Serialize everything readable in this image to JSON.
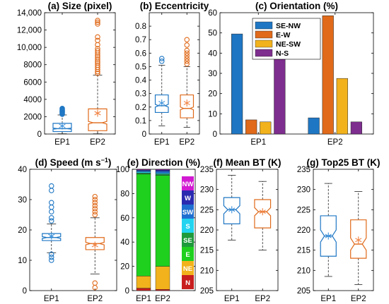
{
  "colors": {
    "ep1": "#1f77c4",
    "ep2": "#e06a1a",
    "axis": "#000000",
    "star_ep1": "#3a8fd9",
    "star_ep2": "#f08040"
  },
  "chart_data": [
    {
      "id": "a",
      "type": "box",
      "title": "(a) Size (pixel)",
      "categories": [
        "EP1",
        "EP2"
      ],
      "ylim": [
        0,
        14000
      ],
      "yticks": [
        0,
        2000,
        4000,
        6000,
        8000,
        10000,
        12000,
        14000
      ],
      "ytick_labels": [
        "0",
        "2000",
        "4000",
        "6000",
        "8000",
        "10,000",
        "12,000",
        "14,000"
      ],
      "boxes": [
        {
          "q1": 280,
          "median": 620,
          "q3": 1230,
          "notch": [
            560,
            680
          ],
          "whisker_low": 30,
          "whisker_high": 2200,
          "mean": 930,
          "outliers": [
            2280,
            2350,
            2420,
            2500,
            2580,
            2650,
            2720,
            2800,
            2880,
            2950
          ]
        },
        {
          "q1": 380,
          "median": 1300,
          "q3": 2900,
          "notch": [
            1150,
            1450
          ],
          "whisker_low": 30,
          "whisker_high": 6800,
          "mean": 2400,
          "outliers": [
            7000,
            7200,
            7450,
            7700,
            7950,
            8200,
            8400,
            8650,
            8900,
            9100,
            9350,
            9600,
            9850,
            10300,
            10800,
            11200,
            12700,
            12900,
            13100
          ]
        }
      ]
    },
    {
      "id": "b",
      "type": "box",
      "title": "(b) Eccentricity",
      "categories": [
        "EP1",
        "EP2"
      ],
      "ylim": [
        0,
        0.9
      ],
      "yticks": [
        0,
        0.1,
        0.2,
        0.3,
        0.4,
        0.5,
        0.6,
        0.7,
        0.8
      ],
      "ytick_labels": [
        "0",
        "0.1",
        "0.2",
        "0.3",
        "0.4",
        "0.5",
        "0.6",
        "0.7",
        "0.8"
      ],
      "boxes": [
        {
          "q1": 0.16,
          "median": 0.21,
          "q3": 0.29,
          "notch": [
            0.2,
            0.22
          ],
          "whisker_low": 0.06,
          "whisker_high": 0.51,
          "mean": 0.23,
          "outliers": [
            0.54,
            0.56
          ]
        },
        {
          "q1": 0.12,
          "median": 0.19,
          "q3": 0.29,
          "notch": [
            0.18,
            0.2
          ],
          "whisker_low": 0.05,
          "whisker_high": 0.5,
          "mean": 0.23,
          "outliers": [
            0.52,
            0.54,
            0.56,
            0.58,
            0.6,
            0.62,
            0.66,
            0.7
          ]
        }
      ]
    },
    {
      "id": "c",
      "type": "bar",
      "title": "(c) Orientation (%)",
      "categories": [
        "EP1",
        "EP2"
      ],
      "ylim": [
        0,
        60
      ],
      "yticks": [
        0,
        10,
        20,
        30,
        40,
        50,
        60
      ],
      "ytick_labels": [
        "0",
        "10",
        "20",
        "30",
        "40",
        "50",
        "60"
      ],
      "legend_position": "top-left",
      "series": [
        {
          "name": "SE-NW",
          "color": "#1f77c4",
          "values": [
            49.5,
            8
          ]
        },
        {
          "name": "E-W",
          "color": "#e06a1a",
          "values": [
            7,
            58.5
          ]
        },
        {
          "name": "NE-SW",
          "color": "#f2b21c",
          "values": [
            6,
            27.5
          ]
        },
        {
          "name": "N-S",
          "color": "#7e2e8e",
          "values": [
            37,
            6
          ]
        }
      ]
    },
    {
      "id": "d",
      "type": "box",
      "title": "(d) Speed (m s",
      "title_sup": "−1",
      "title_end": ")",
      "categories": [
        "EP1",
        "EP2"
      ],
      "ylim": [
        0,
        40
      ],
      "yticks": [
        0,
        10,
        20,
        30,
        40
      ],
      "ytick_labels": [
        "0",
        "10",
        "20",
        "30",
        "40"
      ],
      "boxes": [
        {
          "q1": 16.5,
          "median": 17.5,
          "q3": 18.8,
          "notch": [
            17.2,
            17.8
          ],
          "whisker_low": 12.5,
          "whisker_high": 22,
          "mean": 18,
          "outliers": [
            10,
            11,
            12,
            23,
            24,
            26,
            27.5,
            29,
            33,
            34.5
          ]
        },
        {
          "q1": 13.5,
          "median": 15.5,
          "q3": 17.5,
          "notch": [
            15.1,
            15.9
          ],
          "whisker_low": 5.5,
          "whisker_high": 24,
          "mean": 15,
          "outliers": [
            1,
            2.5,
            25,
            26,
            27,
            28,
            29,
            30,
            31
          ]
        }
      ]
    },
    {
      "id": "e",
      "type": "stacked_bar",
      "title": "(e) Direction (%)",
      "categories": [
        "EP1",
        "EP2"
      ],
      "ylim": [
        0,
        100
      ],
      "yticks": [
        0,
        20,
        40,
        60,
        80,
        100
      ],
      "ytick_labels": [
        "0",
        "20",
        "40",
        "60",
        "80",
        "100"
      ],
      "series": [
        {
          "name": "N",
          "color": "#c81e1e",
          "values": [
            2,
            1
          ]
        },
        {
          "name": "NE",
          "color": "#f2b21c",
          "values": [
            10,
            19
          ]
        },
        {
          "name": "E",
          "color": "#1fd01f",
          "values": [
            84,
            75
          ]
        },
        {
          "name": "SE",
          "color": "#1e9a3c",
          "values": [
            1,
            1
          ]
        },
        {
          "name": "S",
          "color": "#22d4f0",
          "values": [
            1,
            1
          ]
        },
        {
          "name": "SW",
          "color": "#1f6fd1",
          "values": [
            1,
            1.5
          ]
        },
        {
          "name": "W",
          "color": "#2a2ab0",
          "values": [
            0.5,
            1
          ]
        },
        {
          "name": "NW",
          "color": "#d21ad2",
          "values": [
            0.5,
            0.5
          ]
        }
      ]
    },
    {
      "id": "f",
      "type": "box",
      "title": "(f) Mean BT (K)",
      "categories": [
        "EP1",
        "EP2"
      ],
      "ylim": [
        205,
        235
      ],
      "yticks": [
        205,
        210,
        215,
        220,
        225,
        230,
        235
      ],
      "ytick_labels": [
        "205",
        "210",
        "215",
        "220",
        "225",
        "230",
        "235"
      ],
      "boxes": [
        {
          "q1": 221.5,
          "median": 225,
          "q3": 228,
          "notch": [
            224,
            226
          ],
          "whisker_low": 217.5,
          "whisker_high": 233.5,
          "mean": 225,
          "outliers": []
        },
        {
          "q1": 220.5,
          "median": 224.5,
          "q3": 227.5,
          "notch": [
            223.5,
            225.5
          ],
          "whisker_low": 215,
          "whisker_high": 232,
          "mean": 224.5,
          "outliers": []
        }
      ]
    },
    {
      "id": "g",
      "type": "box",
      "title": "(g) Top25 BT (K)",
      "categories": [
        "EP1",
        "EP2"
      ],
      "ylim": [
        205,
        235
      ],
      "yticks": [
        205,
        210,
        215,
        220,
        225,
        230,
        235
      ],
      "ytick_labels": [
        "205",
        "210",
        "215",
        "220",
        "225",
        "230",
        "235"
      ],
      "boxes": [
        {
          "q1": 213.5,
          "median": 218.5,
          "q3": 223.5,
          "notch": [
            217,
            220
          ],
          "whisker_low": 208.5,
          "whisker_high": 231.5,
          "mean": 218.5,
          "outliers": []
        },
        {
          "q1": 213,
          "median": 216.5,
          "q3": 222.5,
          "notch": [
            215,
            218
          ],
          "whisker_low": 206.5,
          "whisker_high": 229.5,
          "mean": 217.5,
          "outliers": []
        }
      ]
    }
  ]
}
